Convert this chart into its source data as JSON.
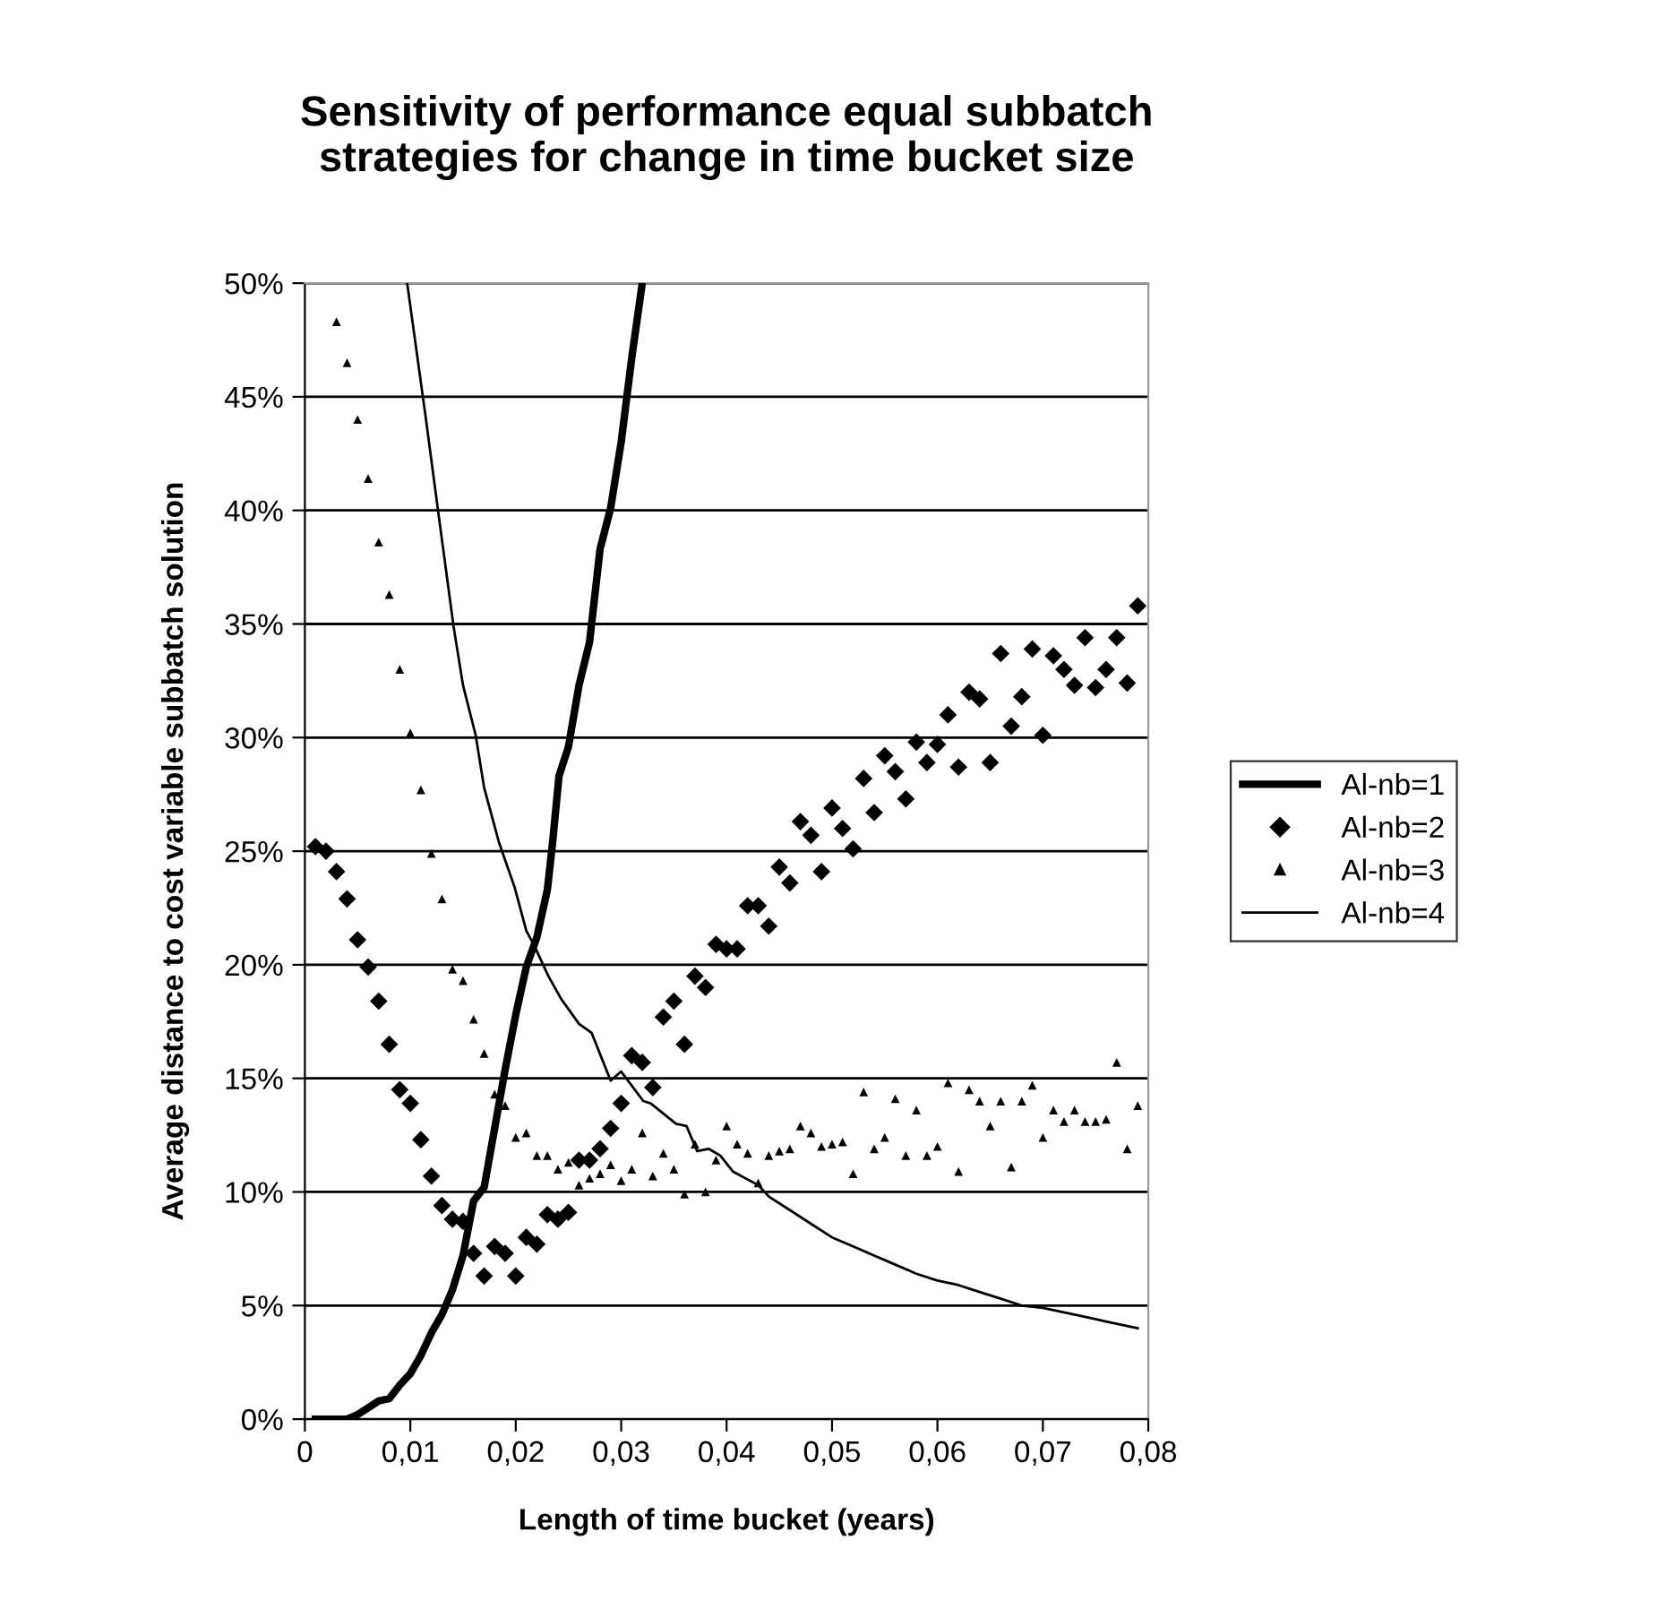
{
  "chart_data": {
    "type": "scatter",
    "title": "Sensitivity of performance equal subbatch\nstrategies for change in time bucket size",
    "xlabel": "Length of time bucket (years)",
    "ylabel": "Average distance to cost variable subbatch solution",
    "xlim": [
      0,
      0.08
    ],
    "ylim": [
      0,
      50
    ],
    "xticks": [
      {
        "value": 0,
        "label": "0"
      },
      {
        "value": 0.01,
        "label": "0,01"
      },
      {
        "value": 0.02,
        "label": "0,02"
      },
      {
        "value": 0.03,
        "label": "0,03"
      },
      {
        "value": 0.04,
        "label": "0,04"
      },
      {
        "value": 0.05,
        "label": "0,05"
      },
      {
        "value": 0.06,
        "label": "0,06"
      },
      {
        "value": 0.07,
        "label": "0,07"
      },
      {
        "value": 0.08,
        "label": "0,08"
      }
    ],
    "yticks": [
      {
        "value": 0,
        "label": "0%"
      },
      {
        "value": 5,
        "label": "5%"
      },
      {
        "value": 10,
        "label": "10%"
      },
      {
        "value": 15,
        "label": "15%"
      },
      {
        "value": 20,
        "label": "20%"
      },
      {
        "value": 25,
        "label": "25%"
      },
      {
        "value": 30,
        "label": "30%"
      },
      {
        "value": 35,
        "label": "35%"
      },
      {
        "value": 40,
        "label": "40%"
      },
      {
        "value": 45,
        "label": "45%"
      },
      {
        "value": 50,
        "label": "50%"
      }
    ],
    "grid": "y",
    "legend": "right",
    "series": [
      {
        "name": "Al-nb=1",
        "type": "line",
        "line_style": "solid",
        "marker": "none",
        "color": "#000000",
        "x": [
          0.001,
          0.004,
          0.005,
          0.006,
          0.007,
          0.008,
          0.009,
          0.01,
          0.011,
          0.012,
          0.013,
          0.014,
          0.015,
          0.016,
          0.017,
          0.018,
          0.019,
          0.02,
          0.021,
          0.022,
          0.023,
          0.0235,
          0.0241,
          0.025,
          0.026,
          0.027,
          0.028,
          0.029,
          0.03,
          0.031,
          0.032
        ],
        "values": [
          0,
          0,
          0.2,
          0.5,
          0.8,
          0.9,
          1.5,
          2.0,
          2.8,
          3.8,
          4.6,
          5.7,
          7.2,
          9.6,
          10.2,
          12.8,
          15.4,
          17.8,
          19.9,
          21.2,
          23.3,
          25.4,
          28.3,
          29.6,
          32.3,
          34.2,
          38.3,
          40.1,
          43.0,
          46.7,
          50
        ]
      },
      {
        "name": "Al-nb=2",
        "marker": "diamond",
        "color": "#000000",
        "x": [
          0.001,
          0.002,
          0.003,
          0.004,
          0.005,
          0.006,
          0.007,
          0.008,
          0.009,
          0.01,
          0.011,
          0.012,
          0.013,
          0.014,
          0.015,
          0.016,
          0.017,
          0.018,
          0.019,
          0.02,
          0.021,
          0.022,
          0.023,
          0.024,
          0.025,
          0.026,
          0.027,
          0.028,
          0.029,
          0.03,
          0.031,
          0.032,
          0.033,
          0.034,
          0.035,
          0.036,
          0.037,
          0.038,
          0.039,
          0.04,
          0.041,
          0.042,
          0.043,
          0.044,
          0.045,
          0.046,
          0.047,
          0.048,
          0.049,
          0.05,
          0.051,
          0.052,
          0.053,
          0.054,
          0.055,
          0.056,
          0.057,
          0.058,
          0.059,
          0.06,
          0.061,
          0.062,
          0.063,
          0.064,
          0.065,
          0.066,
          0.067,
          0.068,
          0.069,
          0.07,
          0.071,
          0.072,
          0.073,
          0.074,
          0.075,
          0.076,
          0.077,
          0.078,
          0.079
        ],
        "values": [
          25.2,
          25.0,
          24.1,
          22.9,
          21.1,
          19.9,
          18.4,
          16.5,
          14.5,
          13.9,
          12.3,
          10.7,
          9.4,
          8.8,
          8.7,
          7.3,
          6.3,
          7.6,
          7.3,
          6.3,
          8.0,
          7.7,
          9.0,
          8.8,
          9.1,
          11.4,
          11.4,
          11.9,
          12.8,
          13.9,
          16.0,
          15.7,
          14.6,
          17.7,
          18.4,
          16.5,
          19.5,
          19.0,
          20.9,
          20.7,
          20.7,
          22.6,
          22.6,
          21.7,
          24.3,
          23.6,
          26.3,
          25.7,
          24.1,
          26.9,
          26.0,
          25.1,
          28.2,
          26.7,
          29.2,
          28.5,
          27.3,
          29.8,
          28.9,
          29.7,
          31.0,
          28.7,
          32.0,
          31.7,
          28.9,
          33.7,
          30.5,
          31.8,
          33.9,
          30.1,
          33.6,
          33.0,
          32.3,
          34.4,
          32.2,
          33.0,
          34.4,
          32.4,
          35.8
        ]
      },
      {
        "name": "Al-nb=3",
        "marker": "triangle",
        "color": "#000000",
        "x": [
          0.003,
          0.004,
          0.005,
          0.006,
          0.007,
          0.008,
          0.009,
          0.01,
          0.011,
          0.012,
          0.013,
          0.014,
          0.015,
          0.016,
          0.017,
          0.018,
          0.019,
          0.02,
          0.021,
          0.022,
          0.023,
          0.024,
          0.025,
          0.026,
          0.027,
          0.028,
          0.029,
          0.03,
          0.031,
          0.032,
          0.033,
          0.034,
          0.035,
          0.036,
          0.037,
          0.038,
          0.039,
          0.04,
          0.041,
          0.042,
          0.043,
          0.044,
          0.045,
          0.046,
          0.047,
          0.048,
          0.049,
          0.05,
          0.051,
          0.052,
          0.053,
          0.054,
          0.055,
          0.056,
          0.057,
          0.058,
          0.059,
          0.06,
          0.061,
          0.062,
          0.063,
          0.064,
          0.065,
          0.066,
          0.067,
          0.068,
          0.069,
          0.07,
          0.071,
          0.072,
          0.073,
          0.074,
          0.075,
          0.076,
          0.077,
          0.078,
          0.079
        ],
        "values": [
          48.3,
          46.5,
          44.0,
          41.4,
          38.6,
          36.3,
          33.0,
          30.2,
          27.7,
          24.9,
          22.9,
          19.8,
          19.3,
          17.6,
          16.1,
          14.3,
          13.8,
          12.4,
          12.6,
          11.6,
          11.6,
          11.0,
          11.3,
          10.3,
          10.6,
          10.8,
          11.2,
          10.5,
          11.0,
          12.6,
          10.7,
          11.7,
          11.0,
          9.9,
          12.1,
          10.0,
          11.4,
          12.9,
          12.1,
          11.7,
          10.4,
          11.6,
          11.8,
          11.9,
          12.9,
          12.6,
          12.0,
          12.1,
          12.2,
          10.8,
          14.4,
          11.9,
          12.4,
          14.1,
          11.6,
          13.6,
          11.6,
          12.0,
          14.8,
          10.9,
          14.5,
          14.0,
          12.9,
          14.0,
          11.1,
          14.0,
          14.7,
          12.4,
          13.6,
          13.1,
          13.6,
          13.1,
          13.1,
          13.2,
          15.7,
          11.9,
          13.8
        ]
      },
      {
        "name": "Al-nb=4",
        "type": "line",
        "line_style": "solid",
        "marker": "none",
        "color": "#000000",
        "x": [
          0.0097,
          0.0114,
          0.0128,
          0.0141,
          0.015,
          0.0162,
          0.017,
          0.0184,
          0.0199,
          0.021,
          0.0218,
          0.0231,
          0.0243,
          0.026,
          0.0272,
          0.029,
          0.03,
          0.0321,
          0.0328,
          0.0352,
          0.0362,
          0.0372,
          0.0383,
          0.0394,
          0.0406,
          0.043,
          0.044,
          0.046,
          0.048,
          0.05,
          0.052,
          0.054,
          0.056,
          0.058,
          0.06,
          0.062,
          0.064,
          0.066,
          0.068,
          0.07,
          0.072,
          0.074,
          0.076,
          0.078,
          0.079
        ],
        "values": [
          50,
          44.3,
          39.4,
          34.9,
          32.3,
          30.1,
          27.8,
          25.4,
          23.4,
          21.5,
          20.8,
          19.5,
          18.5,
          17.4,
          17.0,
          14.9,
          15.3,
          14.0,
          13.9,
          13.0,
          12.9,
          11.8,
          11.9,
          11.6,
          10.9,
          10.3,
          9.8,
          9.2,
          8.6,
          8.0,
          7.6,
          7.2,
          6.8,
          6.4,
          6.1,
          5.9,
          5.6,
          5.3,
          5.0,
          4.9,
          4.7,
          4.5,
          4.3,
          4.1,
          4.0
        ]
      }
    ]
  }
}
